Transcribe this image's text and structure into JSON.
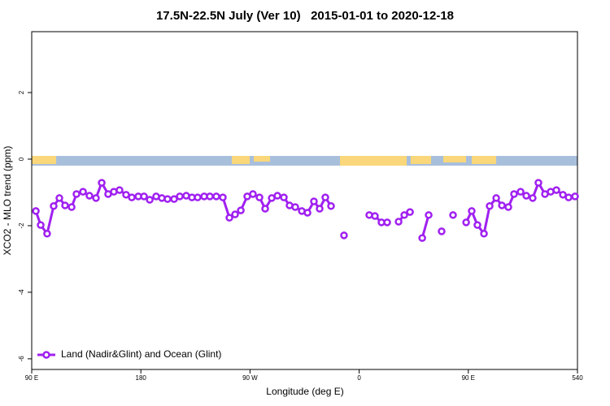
{
  "chart_data": {
    "type": "line",
    "title": "17.5N-22.5N July (Ver 10)   2015-01-01 to 2020-12-18",
    "x_label": "Longitude (deg E)",
    "y_label": "XCO2 - MLO trend (ppm)",
    "x": [
      93.4,
      97.4,
      102.7,
      108.1,
      112.8,
      117.5,
      122.9,
      126.9,
      132.3,
      137.6,
      143,
      147.7,
      153,
      157.7,
      162.4,
      167.8,
      172.5,
      177.9,
      182.6,
      187.3,
      192.6,
      197.3,
      202,
      207.4,
      212.1,
      217.4,
      222.1,
      226.8,
      232.2,
      236.9,
      242.2,
      247.6,
      253,
      257.7,
      262.4,
      267.7,
      272.4,
      277.8,
      282.5,
      287.9,
      292.6,
      297.9,
      302.6,
      307.3,
      312.7,
      317.4,
      322.7,
      327.4,
      332.1,
      336.8,
      342,
      347.5,
      358,
      368.3,
      373,
      378.4,
      383.1,
      387.8,
      392.5,
      397.2,
      401.9,
      407,
      412,
      417.3,
      422.6,
      428,
      432.7,
      437.4,
      442.8,
      448.2,
      452.8,
      457.5,
      462.9,
      467.6,
      473,
      477.7,
      483,
      487.7,
      493.1,
      497.8,
      503.1,
      507.8,
      513.2,
      517.9,
      522.6,
      528,
      532.7,
      538
    ],
    "series": [
      {
        "name": "Land (Nadir&Glint) and Ocean (Glint)",
        "color": "#a020f0",
        "values": [
          -1.56,
          -1.98,
          -2.24,
          -1.41,
          -1.17,
          -1.39,
          -1.44,
          -1.05,
          -0.98,
          -1.1,
          -1.17,
          -0.71,
          -1.05,
          -0.98,
          -0.93,
          -1.07,
          -1.15,
          -1.12,
          -1.12,
          -1.22,
          -1.12,
          -1.17,
          -1.2,
          -1.2,
          -1.12,
          -1.1,
          -1.15,
          -1.15,
          -1.12,
          -1.12,
          -1.12,
          -1.15,
          -1.76,
          -1.66,
          -1.54,
          -1.12,
          -1.05,
          -1.15,
          -1.49,
          -1.17,
          -1.1,
          -1.15,
          -1.39,
          -1.44,
          -1.56,
          -1.61,
          -1.27,
          -1.49,
          -1.15,
          -1.41,
          null,
          -2.29,
          null,
          -1.68,
          -1.71,
          -1.9,
          -1.9,
          null,
          -1.88,
          -1.68,
          -1.59,
          null,
          -2.37,
          -1.68,
          null,
          -2.17,
          null,
          -1.68,
          null,
          -1.9,
          -1.56,
          -1.98,
          -2.24,
          -1.41,
          -1.17,
          -1.39,
          -1.44,
          -1.05,
          -0.98,
          -1.1,
          -1.17,
          -0.71,
          -1.05,
          -0.98,
          -0.93,
          -1.07,
          -1.15,
          -1.12
        ]
      }
    ],
    "xlim": [
      90,
      540
    ],
    "xticks": [
      {
        "value": 90,
        "label": "90 E"
      },
      180,
      {
        "value": 270,
        "label": "90 W"
      },
      {
        "value": 360,
        "label": "0"
      },
      {
        "value": 450,
        "label": "90 E"
      },
      540
    ],
    "ylim": [
      -6.32,
      3.83
    ],
    "yticks": [
      -6,
      -4,
      -2,
      0,
      2
    ],
    "legend": "bottom-left"
  }
}
